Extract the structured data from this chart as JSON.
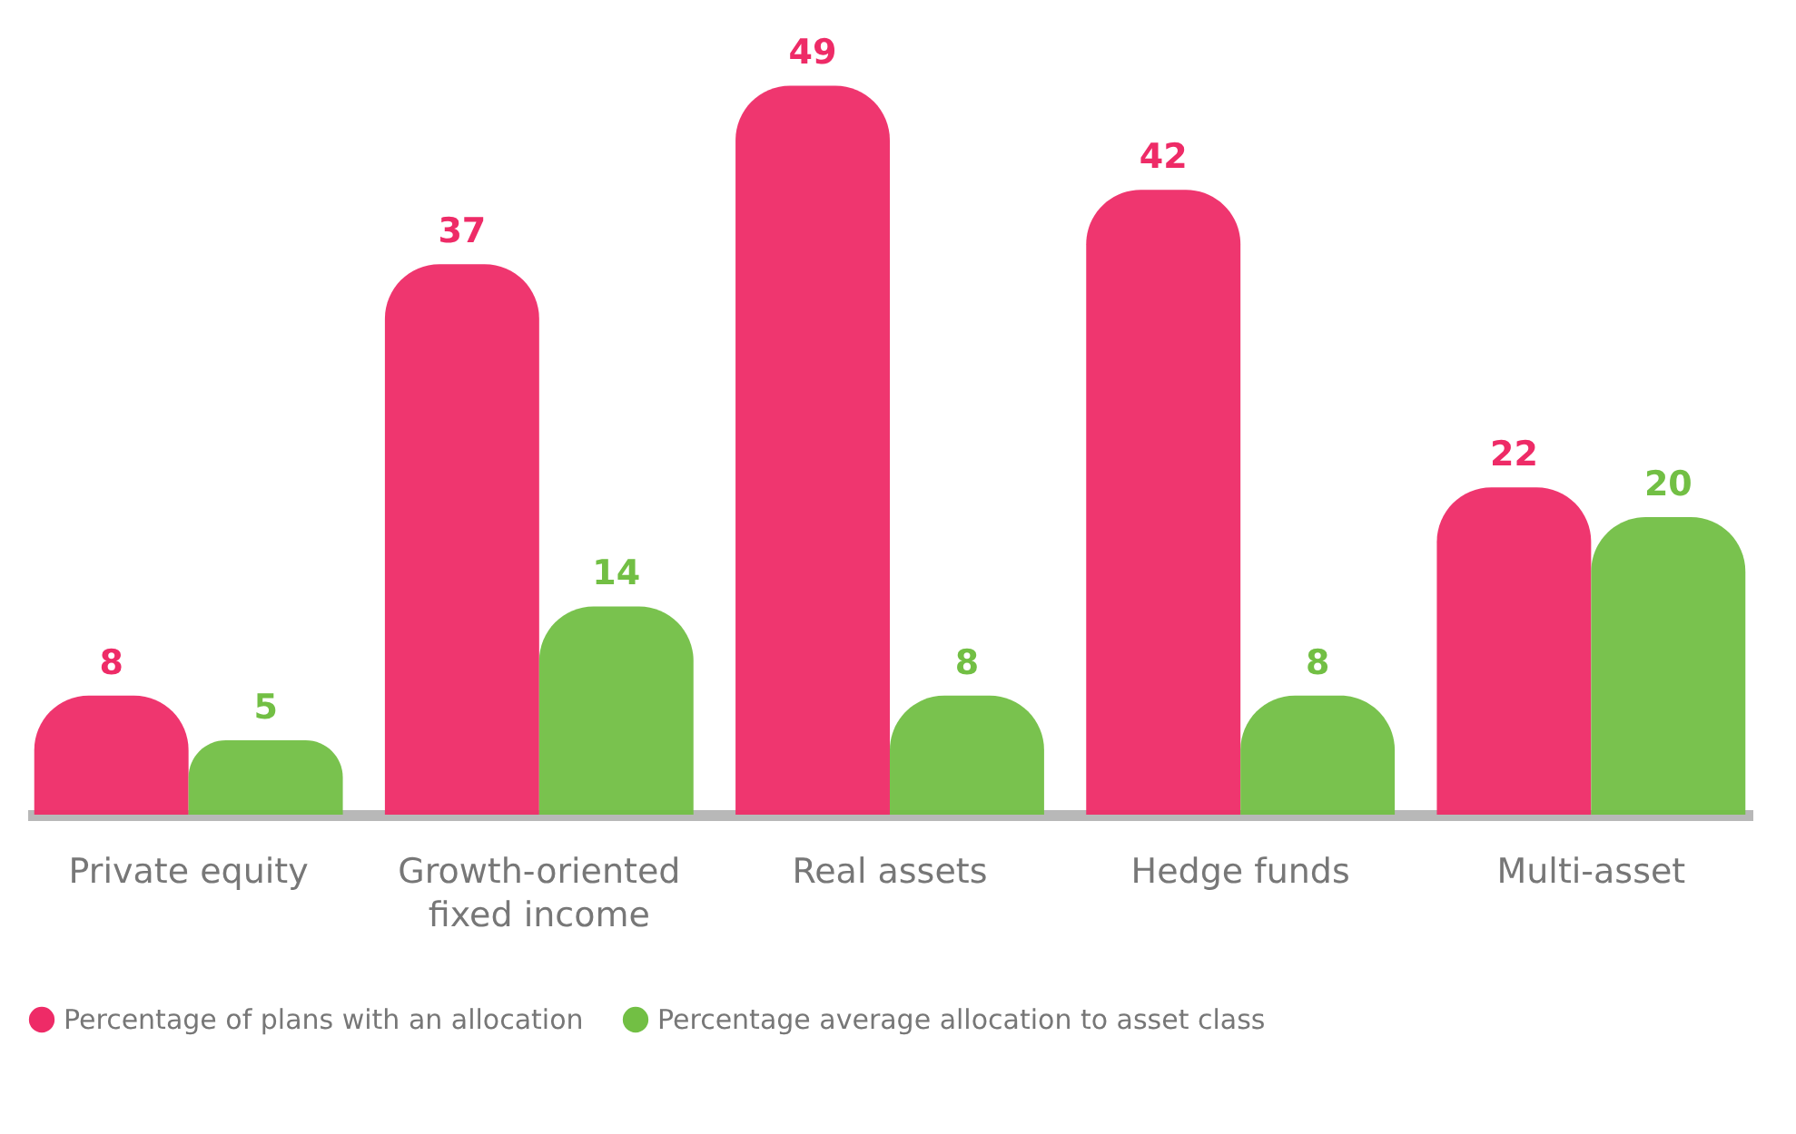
{
  "chart_data": {
    "type": "bar",
    "categories": [
      "Private equity",
      "Growth-oriented fixed income",
      "Real assets",
      "Hedge funds",
      "Multi-asset"
    ],
    "series": [
      {
        "name": "Percentage of plans with an allocation",
        "color": "#ee2b67",
        "values": [
          8,
          37,
          49,
          42,
          22
        ]
      },
      {
        "name": "Percentage average allocation to asset class",
        "color": "#72bf44",
        "values": [
          5,
          14,
          8,
          8,
          20
        ]
      }
    ],
    "data_labels": true,
    "legend": "bottom"
  }
}
